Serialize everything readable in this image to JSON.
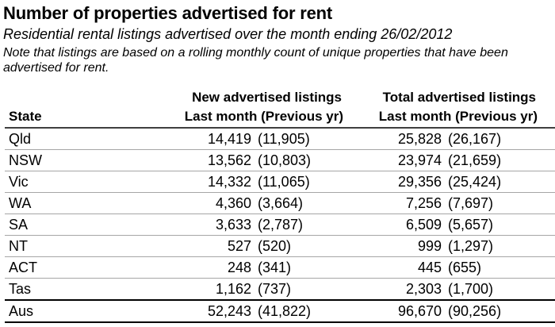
{
  "header": {
    "title": "Number of properties advertised for rent",
    "subtitle": "Residential rental listings advertised over the month ending 26/02/2012",
    "note": "Note that listings are based on a rolling monthly count of unique properties that have been advertised for rent."
  },
  "table": {
    "group_headers": [
      "New advertised listings",
      "Total advertised listings"
    ],
    "state_header": "State",
    "subheader": "Last month (Previous yr)",
    "rows": [
      {
        "state": "Qld",
        "new_last": "14,419",
        "new_prev": "(11,905)",
        "total_last": "25,828",
        "total_prev": "(26,167)"
      },
      {
        "state": "NSW",
        "new_last": "13,562",
        "new_prev": "(10,803)",
        "total_last": "23,974",
        "total_prev": "(21,659)"
      },
      {
        "state": "Vic",
        "new_last": "14,332",
        "new_prev": "(11,065)",
        "total_last": "29,356",
        "total_prev": "(25,424)"
      },
      {
        "state": "WA",
        "new_last": "4,360",
        "new_prev": "(3,664)",
        "total_last": "7,256",
        "total_prev": "(7,697)"
      },
      {
        "state": "SA",
        "new_last": "3,633",
        "new_prev": "(2,787)",
        "total_last": "6,509",
        "total_prev": "(5,657)"
      },
      {
        "state": "NT",
        "new_last": "527",
        "new_prev": "(520)",
        "total_last": "999",
        "total_prev": "(1,297)"
      },
      {
        "state": "ACT",
        "new_last": "248",
        "new_prev": "(341)",
        "total_last": "445",
        "total_prev": "(655)"
      },
      {
        "state": "Tas",
        "new_last": "1,162",
        "new_prev": "(737)",
        "total_last": "2,303",
        "total_prev": "(1,700)"
      }
    ],
    "total_row": {
      "state": "Aus",
      "new_last": "52,243",
      "new_prev": "(41,822)",
      "total_last": "96,670",
      "total_prev": "(90,256)"
    }
  },
  "colors": {
    "background": "#ffffff",
    "text": "#000000",
    "row_divider": "#a6a6a6",
    "header_divider": "#3f3f3f",
    "total_divider": "#000000"
  }
}
